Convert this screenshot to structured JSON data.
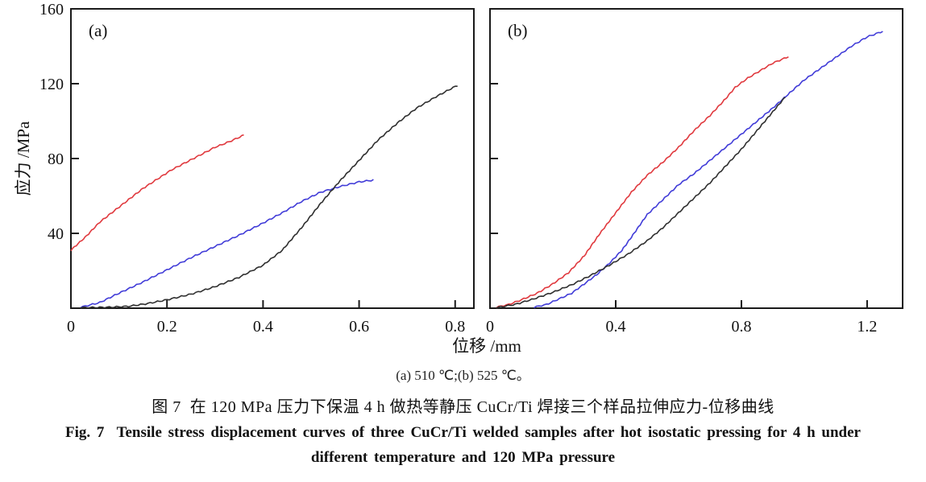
{
  "figure": {
    "xlabel": "位移 /mm",
    "ylabel": "应力 /MPa"
  },
  "captions": {
    "subpanel_line": "(a) 510 ℃;(b) 525 ℃。",
    "chinese_line": "图 7  在 120 MPa 压力下保温 4 h 做热等静压 CuCr/Ti 焊接三个样品拉伸应力-位移曲线",
    "english_line1": "Fig. 7  Tensile stress displacement curves of three CuCr/Ti welded samples after hot isostatic pressing for 4 h under",
    "english_line2": "different temperature and 120 MPa pressure"
  },
  "chart_data": [
    {
      "type": "line",
      "panel_label": "(a)",
      "temperature": "510 ℃",
      "xlabel": "位移 /mm",
      "ylabel": "应力 /MPa",
      "xlim": [
        0,
        0.839
      ],
      "ylim": [
        0,
        160
      ],
      "x_ticks": [
        0,
        0.2,
        0.4,
        0.6,
        0.8
      ],
      "x_tick_labels": [
        "0",
        "0.2",
        "0.4",
        "0.6",
        "0.8"
      ],
      "y_ticks": [
        40,
        80,
        120,
        160
      ],
      "y_tick_labels": [
        "40",
        "80",
        "120",
        "160"
      ],
      "show_y_tick_labels": true,
      "grid": false,
      "legend": "none",
      "series": [
        {
          "name": "sample-red",
          "color": "#e0393e",
          "points": [
            [
              0,
              31
            ],
            [
              0.03,
              38
            ],
            [
              0.06,
              46
            ],
            [
              0.09,
              52
            ],
            [
              0.12,
              58
            ],
            [
              0.15,
              64
            ],
            [
              0.18,
              69
            ],
            [
              0.21,
              74
            ],
            [
              0.24,
              78
            ],
            [
              0.27,
              82
            ],
            [
              0.3,
              86
            ],
            [
              0.33,
              89
            ],
            [
              0.36,
              92.5
            ]
          ]
        },
        {
          "name": "sample-blue",
          "color": "#413cd8",
          "points": [
            [
              0.02,
              0.5
            ],
            [
              0.06,
              3
            ],
            [
              0.1,
              8
            ],
            [
              0.15,
              14
            ],
            [
              0.2,
              20.5
            ],
            [
              0.25,
              27
            ],
            [
              0.3,
              33
            ],
            [
              0.35,
              39
            ],
            [
              0.4,
              45.5
            ],
            [
              0.44,
              51
            ],
            [
              0.48,
              57
            ],
            [
              0.52,
              62
            ],
            [
              0.56,
              65
            ],
            [
              0.6,
              67.5
            ],
            [
              0.63,
              68.5
            ]
          ]
        },
        {
          "name": "sample-black",
          "color": "#2f2f2f",
          "points": [
            [
              0.02,
              0.3
            ],
            [
              0.08,
              0.5
            ],
            [
              0.12,
              1
            ],
            [
              0.16,
              2.5
            ],
            [
              0.2,
              4.5
            ],
            [
              0.25,
              7.5
            ],
            [
              0.3,
              11.5
            ],
            [
              0.35,
              16.5
            ],
            [
              0.4,
              23
            ],
            [
              0.44,
              31
            ],
            [
              0.48,
              43
            ],
            [
              0.52,
              56
            ],
            [
              0.56,
              68
            ],
            [
              0.6,
              79
            ],
            [
              0.64,
              90
            ],
            [
              0.68,
              99
            ],
            [
              0.72,
              107
            ],
            [
              0.76,
              113
            ],
            [
              0.8,
              118.5
            ],
            [
              0.805,
              119
            ]
          ]
        }
      ]
    },
    {
      "type": "line",
      "panel_label": "(b)",
      "temperature": "525 ℃",
      "xlabel": "位移 /mm",
      "ylabel": "应力 /MPa",
      "xlim": [
        0,
        1.313
      ],
      "ylim": [
        0,
        160
      ],
      "x_ticks": [
        0,
        0.4,
        0.8,
        1.2
      ],
      "x_tick_labels": [
        "0",
        "0.4",
        "0.8",
        "1.2"
      ],
      "y_ticks": [
        40,
        80,
        120,
        160
      ],
      "y_tick_labels": [],
      "show_y_tick_labels": false,
      "grid": false,
      "legend": "none",
      "series": [
        {
          "name": "sample-red",
          "color": "#e0393e",
          "points": [
            [
              0.02,
              0.5
            ],
            [
              0.06,
              2
            ],
            [
              0.1,
              4.5
            ],
            [
              0.15,
              8
            ],
            [
              0.2,
              13
            ],
            [
              0.25,
              19
            ],
            [
              0.3,
              28
            ],
            [
              0.35,
              40
            ],
            [
              0.4,
              51
            ],
            [
              0.45,
              62
            ],
            [
              0.5,
              71
            ],
            [
              0.55,
              78
            ],
            [
              0.6,
              86
            ],
            [
              0.65,
              95
            ],
            [
              0.7,
              103
            ],
            [
              0.75,
              112
            ],
            [
              0.78,
              118
            ],
            [
              0.82,
              123
            ],
            [
              0.86,
              127
            ],
            [
              0.9,
              131
            ],
            [
              0.95,
              134.5
            ]
          ]
        },
        {
          "name": "sample-blue",
          "color": "#413cd8",
          "points": [
            [
              0.14,
              0.5
            ],
            [
              0.18,
              2
            ],
            [
              0.22,
              5
            ],
            [
              0.26,
              8
            ],
            [
              0.3,
              13
            ],
            [
              0.34,
              18
            ],
            [
              0.38,
              24
            ],
            [
              0.42,
              31
            ],
            [
              0.45,
              38
            ],
            [
              0.5,
              50
            ],
            [
              0.55,
              58
            ],
            [
              0.6,
              66
            ],
            [
              0.65,
              72
            ],
            [
              0.7,
              79
            ],
            [
              0.75,
              86
            ],
            [
              0.8,
              93
            ],
            [
              0.85,
              100
            ],
            [
              0.9,
              107
            ],
            [
              0.96,
              116
            ],
            [
              1.0,
              122
            ],
            [
              1.05,
              128
            ],
            [
              1.1,
              134
            ],
            [
              1.15,
              140
            ],
            [
              1.2,
              145
            ],
            [
              1.25,
              148
            ]
          ]
        },
        {
          "name": "sample-black",
          "color": "#2f2f2f",
          "points": [
            [
              0.02,
              0.3
            ],
            [
              0.08,
              2
            ],
            [
              0.14,
              5
            ],
            [
              0.2,
              8.5
            ],
            [
              0.26,
              12.5
            ],
            [
              0.32,
              17.5
            ],
            [
              0.38,
              23
            ],
            [
              0.44,
              29
            ],
            [
              0.5,
              36
            ],
            [
              0.55,
              43
            ],
            [
              0.6,
              51
            ],
            [
              0.65,
              59
            ],
            [
              0.7,
              67
            ],
            [
              0.75,
              76
            ],
            [
              0.8,
              85
            ],
            [
              0.85,
              95
            ],
            [
              0.9,
              105
            ],
            [
              0.94,
              113
            ]
          ]
        }
      ]
    }
  ]
}
